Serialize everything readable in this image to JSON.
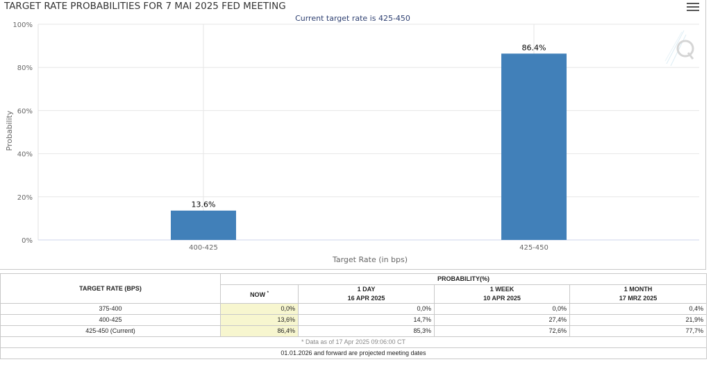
{
  "title": "TARGET RATE PROBABILITIES FOR 7 MAI 2025 FED MEETING",
  "subtitle": "Current target rate is 425-450",
  "colors": {
    "bar": "#4180b9",
    "now_highlight": "#f7f6cf",
    "subtitle": "#2c3e70"
  },
  "icons": {
    "menu": "hamburger-menu-icon",
    "watermark": "q-logo-watermark"
  },
  "chart_data": {
    "type": "bar",
    "categories": [
      "400-425",
      "425-450"
    ],
    "values": [
      13.6,
      86.4
    ],
    "data_labels": [
      "13.6%",
      "86.4%"
    ],
    "title": "TARGET RATE PROBABILITIES FOR 7 MAI 2025 FED MEETING",
    "subtitle": "Current target rate is 425-450",
    "xlabel": "Target Rate (in bps)",
    "ylabel": "Probability",
    "ylim": [
      0,
      100
    ],
    "yticks": [
      0,
      20,
      40,
      60,
      80,
      100
    ],
    "ytick_labels": [
      "0%",
      "20%",
      "40%",
      "60%",
      "80%",
      "100%"
    ],
    "grid": true,
    "legend": "none"
  },
  "table": {
    "rate_header": "TARGET RATE (BPS)",
    "prob_header": "PROBABILITY(%)",
    "columns": [
      {
        "line1": "NOW",
        "marker": "*",
        "line2": ""
      },
      {
        "line1": "1 DAY",
        "line2": "16 APR 2025"
      },
      {
        "line1": "1 WEEK",
        "line2": "10 APR 2025"
      },
      {
        "line1": "1 MONTH",
        "line2": "17 MRZ 2025"
      }
    ],
    "rows": [
      {
        "rate": "375-400",
        "values": [
          "0,0%",
          "0,0%",
          "0,0%",
          "0,4%"
        ]
      },
      {
        "rate": "400-425",
        "values": [
          "13,6%",
          "14,7%",
          "27,4%",
          "21,9%"
        ]
      },
      {
        "rate": "425-450 (Current)",
        "values": [
          "86,4%",
          "85,3%",
          "72,6%",
          "77,7%"
        ]
      }
    ],
    "note": "* Data as of 17 Apr 2025 09:06:00 CT",
    "footer": "01.01.2026 and forward are projected meeting dates"
  }
}
